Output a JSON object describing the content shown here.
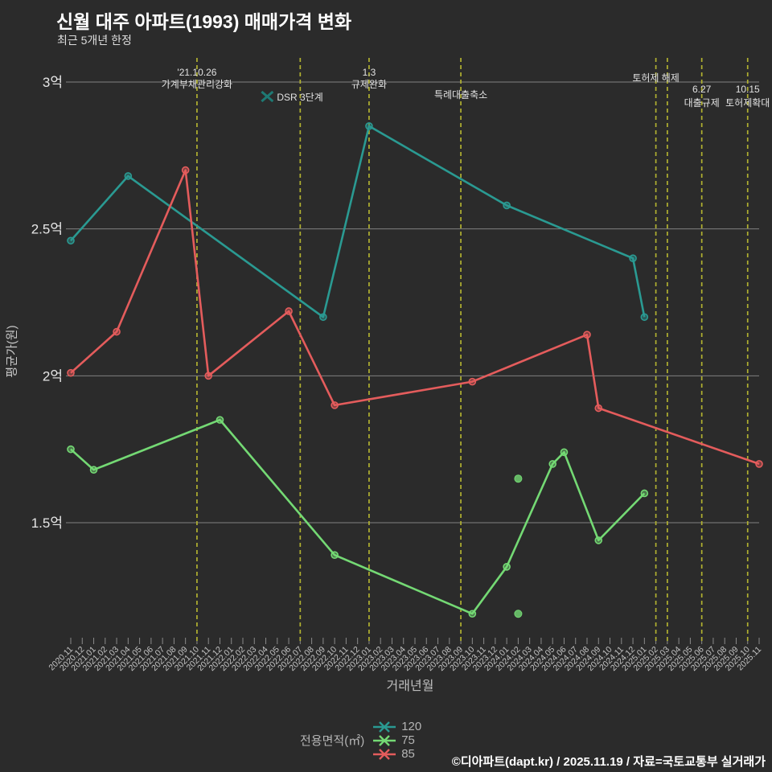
{
  "title": "신월 대주 아파트(1993) 매매가격 변화",
  "subtitle": "최근 5개년 한정",
  "footer": "©디아파트(dapt.kr) / 2025.11.19 / 자료=국토교통부 실거래가",
  "legend": {
    "label": "전용면적(㎡)",
    "items": [
      {
        "name": "120"
      },
      {
        "name": "75"
      },
      {
        "name": "85"
      }
    ]
  },
  "chart_data": {
    "type": "line",
    "title": "신월 대주 아파트(1993) 매매가격 변화",
    "subtitle": "최근 5개년 한정",
    "xlabel": "거래년월",
    "ylabel": "평균가(원)",
    "unit": "억",
    "ylim": [
      1.1,
      3.1
    ],
    "grid": true,
    "grid_color": "#8f8f8f",
    "event_line_color": "#b1b130",
    "y_ticks": [
      {
        "label": "3억",
        "value": 3.0
      },
      {
        "label": "2.5억",
        "value": 2.5
      },
      {
        "label": "2억",
        "value": 2.0
      },
      {
        "label": "1.5억",
        "value": 1.5
      }
    ],
    "x_labels": [
      "2020.11",
      "2020.12",
      "2021.01",
      "2021.02",
      "2021.03",
      "2021.04",
      "2021.05",
      "2021.06",
      "2021.07",
      "2021.08",
      "2021.09",
      "2021.10",
      "2021.11",
      "2021.12",
      "2022.01",
      "2022.02",
      "2022.03",
      "2022.04",
      "2022.05",
      "2022.06",
      "2022.07",
      "2022.08",
      "2022.09",
      "2022.10",
      "2022.11",
      "2022.12",
      "2023.01",
      "2023.02",
      "2023.03",
      "2023.04",
      "2023.05",
      "2023.06",
      "2023.07",
      "2023.08",
      "2023.09",
      "2023.10",
      "2023.11",
      "2023.12",
      "2024.01",
      "2024.02",
      "2024.03",
      "2024.04",
      "2024.05",
      "2024.06",
      "2024.07",
      "2024.08",
      "2024.09",
      "2024.10",
      "2024.11",
      "2024.12",
      "2025.01",
      "2025.02",
      "2025.03",
      "2025.04",
      "2025.05",
      "2025.06",
      "2025.07",
      "2025.08",
      "2025.09",
      "2025.10",
      "2025.11"
    ],
    "series": [
      {
        "name": "120",
        "color": "#2a9a92",
        "points": [
          [
            "2020.11",
            2.46
          ],
          [
            "2021.04",
            2.68
          ],
          [
            "2022.09",
            2.2
          ],
          [
            "2023.01",
            2.85
          ],
          [
            "2024.01",
            2.58
          ],
          [
            "2024.12",
            2.4
          ],
          [
            "2025.01",
            2.2
          ]
        ]
      },
      {
        "name": "75",
        "color": "#74d974",
        "points": [
          [
            "2020.11",
            1.75
          ],
          [
            "2021.01",
            1.68
          ],
          [
            "2021.12",
            1.85
          ],
          [
            "2022.10",
            1.39
          ],
          [
            "2023.10",
            1.19
          ],
          [
            "2024.01",
            1.35
          ],
          [
            "2024.05",
            1.7
          ],
          [
            "2024.06",
            1.74
          ],
          [
            "2024.09",
            1.44
          ],
          [
            "2025.01",
            1.6
          ]
        ],
        "isolated_points": [
          [
            "2024.02",
            1.65
          ],
          [
            "2024.02",
            1.19
          ]
        ]
      },
      {
        "name": "85",
        "color": "#e45c5c",
        "points": [
          [
            "2020.11",
            2.01
          ],
          [
            "2021.03",
            2.15
          ],
          [
            "2021.09",
            2.7
          ],
          [
            "2021.11",
            2.0
          ],
          [
            "2022.06",
            2.22
          ],
          [
            "2022.10",
            1.9
          ],
          [
            "2023.10",
            1.98
          ],
          [
            "2024.08",
            2.14
          ],
          [
            "2024.09",
            1.89
          ],
          [
            "2025.11",
            1.7
          ]
        ]
      }
    ],
    "events": [
      {
        "month": "2021.10",
        "date": "'21.10.26",
        "label": "가계부채관리강화",
        "layout": "two-top"
      },
      {
        "month": "2022.07",
        "date": "",
        "label": "DSR 3단계",
        "layout": "marker-left",
        "marker_color": "#1e7a74"
      },
      {
        "month": "2023.01",
        "date": "1.3",
        "label": "규제완화",
        "layout": "two-top"
      },
      {
        "month": "2023.09",
        "date": "",
        "label": "특례대출축소",
        "layout": "one-mid"
      },
      {
        "month": "2025.02",
        "date": "",
        "label": "토허제 해제",
        "layout": "one-high"
      },
      {
        "month": "2025.03",
        "date": "",
        "label": "",
        "layout": "line-only"
      },
      {
        "month": "2025.06",
        "date": "6.27",
        "label": "대출규제",
        "layout": "two-low"
      },
      {
        "month": "2025.10",
        "date": "10.15",
        "label": "토허제확대",
        "layout": "two-low"
      }
    ]
  }
}
